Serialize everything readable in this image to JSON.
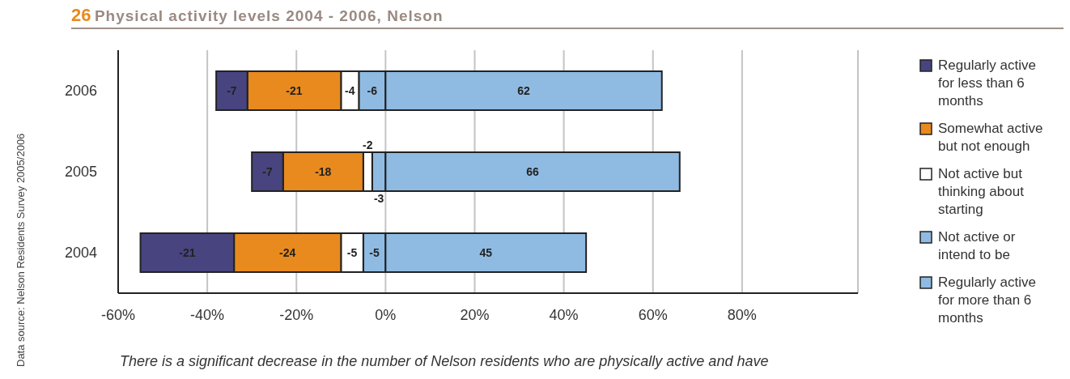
{
  "chart_data": {
    "type": "bar",
    "orientation": "horizontal",
    "stacked": true,
    "title": "26 Physical activity levels 2004 - 2006, Nelson",
    "categories": [
      "2006",
      "2005",
      "2004"
    ],
    "series": [
      {
        "name": "Not active or intend to be",
        "color": "#8fbbe2",
        "values": [
          -6,
          -3,
          -5
        ]
      },
      {
        "name": "Not active but thinking about starting",
        "color": "#ffffff",
        "values": [
          -4,
          -2,
          -5
        ]
      },
      {
        "name": "Somewhat active but not enough",
        "color": "#e88a1e",
        "values": [
          -21,
          -18,
          -24
        ]
      },
      {
        "name": "Regularly active for less than 6 months",
        "color": "#47447f",
        "values": [
          -7,
          -7,
          -21
        ]
      },
      {
        "name": "Regularly active for more than 6 months",
        "color": "#8fbbe2",
        "values": [
          62,
          66,
          45
        ]
      }
    ],
    "xlim": [
      -60,
      106
    ],
    "xticks": [
      {
        "value": -60,
        "label": "-60%"
      },
      {
        "value": -40,
        "label": "-40%"
      },
      {
        "value": -20,
        "label": "-20%"
      },
      {
        "value": 0,
        "label": "0%"
      },
      {
        "value": 20,
        "label": "20%"
      },
      {
        "value": 40,
        "label": "40%"
      },
      {
        "value": 60,
        "label": "60%"
      },
      {
        "value": 80,
        "label": "80%"
      }
    ],
    "grid": "x",
    "legend": "right",
    "data_labels": true,
    "annotations": [
      "Data source: Nelson Residents Survey 2005/2006",
      "There is a significant decrease in the number of Nelson residents who are physically active and have"
    ]
  }
}
